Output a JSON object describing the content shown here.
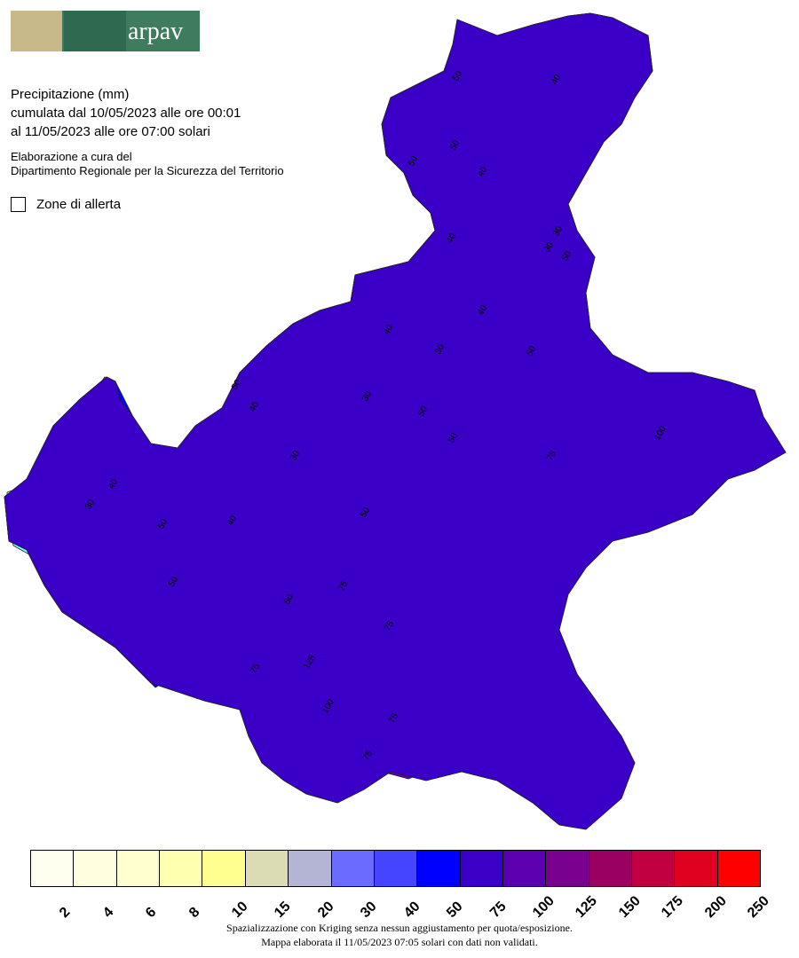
{
  "header": {
    "logo_text": "arpav",
    "title": "Precipitazione (mm)",
    "period_line1": "cumulata dal 10/05/2023 alle ore 00:01",
    "period_line2": "al 11/05/2023 alle ore 07:00 solari",
    "credit_line1": "Elaborazione a cura del",
    "credit_line2": "Dipartimento Regionale per la Sicurezza del Territorio",
    "zone_label": "Zone di allerta"
  },
  "colors": {
    "lake": "#80ffff",
    "c30": "#6b6bff",
    "c40": "#4545ff",
    "c50": "#0000ff",
    "c75": "#3a00c8",
    "c100": "#5a00b0",
    "c125": "#7a0090",
    "c150": "#9a0060"
  },
  "contour_labels": [
    {
      "text": "50"
    },
    {
      "text": "40"
    },
    {
      "text": "50"
    },
    {
      "text": "50"
    },
    {
      "text": "40"
    },
    {
      "text": "30"
    },
    {
      "text": "30"
    },
    {
      "text": "40"
    },
    {
      "text": "50"
    },
    {
      "text": "30"
    },
    {
      "text": "40"
    },
    {
      "text": "50"
    },
    {
      "text": "30"
    },
    {
      "text": "50"
    },
    {
      "text": "40"
    },
    {
      "text": "50"
    },
    {
      "text": "40"
    },
    {
      "text": "50"
    },
    {
      "text": "30"
    },
    {
      "text": "40"
    },
    {
      "text": "30"
    },
    {
      "text": "50"
    },
    {
      "text": "40"
    },
    {
      "text": "50"
    },
    {
      "text": "75"
    },
    {
      "text": "75"
    },
    {
      "text": "75"
    },
    {
      "text": "100"
    },
    {
      "text": "125"
    },
    {
      "text": "100"
    },
    {
      "text": "75"
    },
    {
      "text": "75"
    },
    {
      "text": "75"
    },
    {
      "text": "50"
    },
    {
      "text": "50"
    }
  ],
  "legend": {
    "colors": [
      "#fffff0",
      "#ffffe0",
      "#ffffd0",
      "#ffffb0",
      "#ffff90",
      "#dcdcb4",
      "#b4b4d4",
      "#6b6bff",
      "#4545ff",
      "#0000ff",
      "#3a00c8",
      "#5a00b0",
      "#7a0090",
      "#9a0060",
      "#c00040",
      "#e00020",
      "#ff0000"
    ],
    "ticks": [
      "2",
      "4",
      "6",
      "8",
      "10",
      "15",
      "20",
      "30",
      "40",
      "50",
      "75",
      "100",
      "125",
      "150",
      "175",
      "200",
      "250"
    ]
  },
  "footer": {
    "line1": "Spazializzazione con Kriging senza nessun aggiustamento per quota/esposizione.",
    "line2": "Mappa elaborata il 11/05/2023 07:05 solari con dati non validati."
  }
}
